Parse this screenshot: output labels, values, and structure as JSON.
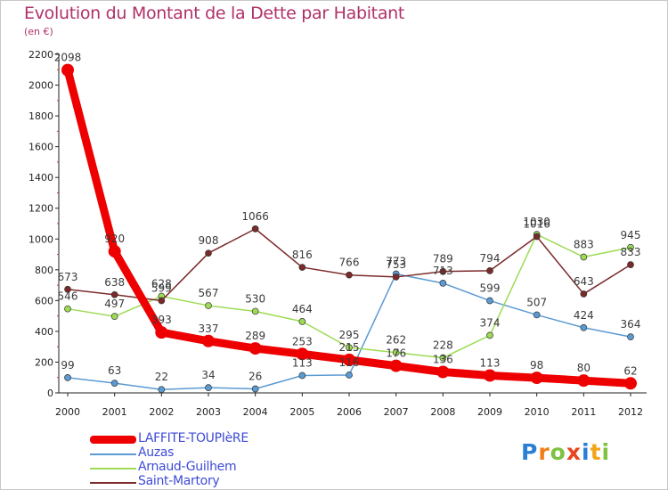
{
  "title": "Evolution du Montant de la Dette par Habitant",
  "unit": "(en €)",
  "logo": {
    "letters": [
      "P",
      "r",
      "o",
      "x",
      "i",
      "t",
      "i"
    ],
    "colors": [
      "#2a7fd4",
      "#f07f1a",
      "#7dc242",
      "#e8441d",
      "#2a7fd4",
      "#f2a51b",
      "#7dc242"
    ]
  },
  "chart_data": {
    "type": "line",
    "title": "Evolution du Montant de la Dette par Habitant",
    "ylabel": "(en €)",
    "xlabel": "",
    "x": [
      "2000",
      "2001",
      "2002",
      "2003",
      "2004",
      "2005",
      "2006",
      "2007",
      "2008",
      "2009",
      "2010",
      "2011",
      "2012"
    ],
    "ylim": [
      0,
      2200
    ],
    "yticks": [
      "0",
      "200",
      "400",
      "600",
      "800",
      "1000",
      "1200",
      "1400",
      "1600",
      "1800",
      "2000",
      "2200"
    ],
    "grid": false,
    "legend": "bottom-left",
    "series": [
      {
        "name": "Auzas",
        "color": "#5b9ad2",
        "values": [
          99,
          63,
          22,
          34,
          26,
          113,
          116,
          773,
          713,
          599,
          507,
          424,
          364
        ],
        "labels": [
          "99",
          "63",
          "22",
          "34",
          "26",
          "113",
          "116",
          "773",
          "713",
          "599",
          "507",
          "424",
          "364"
        ]
      },
      {
        "name": "Arnaud-Guilhem",
        "color": "#9ddb55",
        "values": [
          546,
          497,
          628,
          567,
          530,
          464,
          295,
          262,
          228,
          374,
          1030,
          883,
          945
        ],
        "labels": [
          "546",
          "497",
          "628",
          "567",
          "530",
          "464",
          "295",
          "262",
          "228",
          "374",
          "1030",
          "883",
          "945"
        ]
      },
      {
        "name": "Saint-Martory",
        "color": "#7b2a2a",
        "values": [
          673,
          638,
          599,
          908,
          1066,
          816,
          766,
          753,
          789,
          794,
          1016,
          643,
          833
        ],
        "labels": [
          "673",
          "638",
          "599",
          "908",
          "1066",
          "816",
          "766",
          "753",
          "789",
          "794",
          "1016",
          "643",
          "833"
        ]
      },
      {
        "name": "LAFFITE-TOUPIèRE",
        "color": "#ee0000",
        "values": [
          2098,
          920,
          393,
          337,
          289,
          253,
          215,
          176,
          136,
          113,
          98,
          80,
          62
        ],
        "labels": [
          "2098",
          "920",
          "393",
          "337",
          "289",
          "253",
          "215",
          "176",
          "136",
          "113",
          "98",
          "80",
          "62"
        ]
      }
    ]
  },
  "legend_items": [
    {
      "label": "LAFFITE-TOUPIèRE",
      "color": "#ee0000"
    },
    {
      "label": "Auzas",
      "color": "#5b9ad2"
    },
    {
      "label": "Arnaud-Guilhem",
      "color": "#9ddb55"
    },
    {
      "label": "Saint-Martory",
      "color": "#7b2a2a"
    }
  ]
}
